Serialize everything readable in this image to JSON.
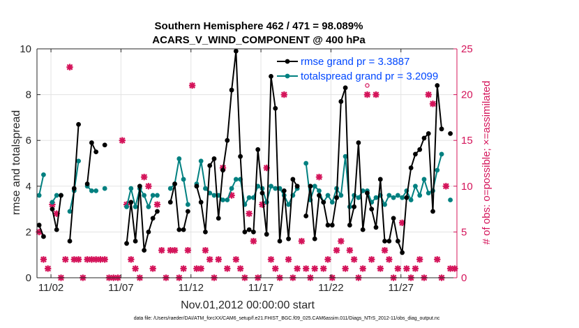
{
  "chart_data": {
    "type": "line",
    "title_line1": "Southern Hemisphere 462 / 471 = 98.089%",
    "title_line2": "ACARS_V_WIND_COMPONENT @ 400 hPa",
    "xlabel": "Nov.01,2012 00:00:00 start",
    "ylabel_left": "rmse and totalspread",
    "ylabel_right": "# of obs: o=possible; ×=assimilated",
    "footnote": "data file: /Users/raeder/DAI/ATM_forcXX/CAM6_setup/f.e21.FHIST_BGC.f09_025.CAM6assim.011/Diags_NTrS_2012-11/obs_diag_output.nc",
    "xlim": [
      0.5,
      30.5
    ],
    "ylim_left": [
      0,
      10
    ],
    "ylim_right": [
      0,
      25
    ],
    "x_ticks": [
      1.5,
      6.5,
      11.5,
      16.5,
      21.5,
      26.5
    ],
    "x_tick_labels": [
      "11/02",
      "11/07",
      "11/12",
      "11/17",
      "11/22",
      "11/27"
    ],
    "y_ticks_left": [
      "0",
      "2",
      "4",
      "6",
      "8",
      "10"
    ],
    "y_ticks_right": [
      "0",
      "5",
      "10",
      "15",
      "20",
      "25"
    ],
    "grid": true,
    "legend_position": "top-right",
    "colors": {
      "rmse": "#000000",
      "spread": "#008080",
      "obs": "#d4145a",
      "axis": "#262626",
      "legend_text": "#0047ff"
    },
    "series": [
      {
        "name": "rmse grand pr = 3.3887",
        "axis": "left",
        "values": [
          2.3,
          1.8,
          null,
          3.0,
          2.1,
          3.6,
          null,
          1.6,
          3.9,
          6.7,
          null,
          4.1,
          5.9,
          5.5,
          null,
          5.8,
          null,
          null,
          null,
          null,
          1.5,
          3.3,
          1.6,
          4.0,
          1.2,
          2.0,
          2.6,
          2.9,
          null,
          null,
          3.3,
          4.1,
          2.1,
          2.1,
          2.9,
          null,
          4.0,
          3.3,
          2.0,
          4.9,
          5.2,
          2.6,
          4.7,
          6.0,
          8.2,
          9.9,
          5.3,
          2.0,
          2.1,
          2.0,
          5.6,
          3.7,
          1.9,
          8.8,
          7.4,
          1.6,
          3.8,
          1.7,
          4.3,
          4.0,
          null,
          2.7,
          4.0,
          1.7,
          3.6,
          3.3,
          2.3,
          2.3,
          3.5,
          7.7,
          8.3,
          2.3,
          3.1,
          5.9,
          2.1,
          3.7,
          3.0,
          2.2,
          4.3,
          1.6,
          1.6,
          2.6,
          1.6,
          1.1,
          3.5,
          4.8,
          5.4,
          5.6,
          6.1,
          6.3,
          2.9,
          8.4,
          6.5,
          null,
          6.3,
          null
        ]
      },
      {
        "name": "totalspread grand pr = 3.2099",
        "axis": "left",
        "values": [
          3.6,
          4.5,
          null,
          3.3,
          3.6,
          3.6,
          null,
          2.9,
          3.8,
          5.1,
          null,
          4.0,
          3.8,
          3.8,
          null,
          3.9,
          null,
          null,
          null,
          null,
          3.1,
          3.9,
          3.1,
          3.9,
          3.6,
          3.1,
          3.6,
          3.6,
          null,
          null,
          3.9,
          4.1,
          5.2,
          4.3,
          3.2,
          null,
          4.1,
          5.1,
          3.9,
          3.7,
          3.6,
          3.6,
          3.4,
          3.4,
          3.9,
          4.3,
          4.3,
          3.2,
          3.5,
          3.5,
          4.0,
          3.9,
          3.3,
          4.0,
          3.9,
          3.9,
          3.6,
          3.2,
          3.6,
          3.9,
          null,
          5.0,
          3.4,
          4.0,
          3.8,
          3.3,
          3.6,
          3.3,
          3.9,
          3.6,
          5.3,
          3.1,
          3.6,
          3.5,
          3.8,
          3.8,
          3.3,
          3.5,
          3.6,
          3.2,
          3.6,
          3.5,
          3.6,
          3.5,
          3.8,
          3.4,
          4.0,
          3.6,
          4.3,
          3.7,
          3.8,
          4.7,
          5.4,
          null,
          3.4,
          null
        ]
      },
      {
        "name": "# of obs possible",
        "axis": "right",
        "marker": "o",
        "values": [
          5,
          2,
          1,
          8,
          7,
          0,
          2,
          23,
          2,
          2,
          0,
          2,
          2,
          2,
          2,
          2,
          0,
          0,
          0,
          15,
          8,
          2,
          1,
          0,
          11,
          10,
          1,
          8,
          3,
          0,
          3,
          3,
          0,
          1,
          3,
          21,
          1,
          1,
          3,
          2,
          0,
          2,
          12,
          1,
          9,
          2,
          1,
          0,
          7,
          4,
          0,
          8,
          12,
          2,
          1,
          0,
          20,
          2,
          0,
          1,
          4,
          1,
          0,
          1,
          11,
          1,
          2,
          0,
          3,
          4,
          1,
          3,
          2,
          0,
          1,
          21,
          2,
          20,
          1,
          3,
          2,
          0,
          1,
          6,
          1,
          0,
          1,
          2,
          0,
          20,
          19,
          2,
          0,
          10,
          1,
          1
        ]
      },
      {
        "name": "# of obs assimilated",
        "axis": "right",
        "marker": "x",
        "values": [
          5,
          2,
          1,
          8,
          7,
          0,
          2,
          23,
          2,
          2,
          0,
          2,
          2,
          2,
          2,
          2,
          0,
          0,
          0,
          15,
          8,
          2,
          1,
          0,
          11,
          10,
          1,
          8,
          3,
          0,
          3,
          3,
          0,
          1,
          3,
          21,
          1,
          1,
          3,
          2,
          0,
          2,
          12,
          1,
          9,
          2,
          1,
          0,
          7,
          4,
          0,
          8,
          12,
          2,
          1,
          0,
          20,
          2,
          0,
          1,
          4,
          1,
          0,
          1,
          11,
          1,
          2,
          0,
          3,
          4,
          1,
          3,
          2,
          0,
          1,
          20,
          2,
          20,
          1,
          3,
          2,
          0,
          1,
          6,
          1,
          0,
          1,
          2,
          0,
          20,
          19,
          2,
          0,
          10,
          1,
          1
        ]
      }
    ]
  }
}
